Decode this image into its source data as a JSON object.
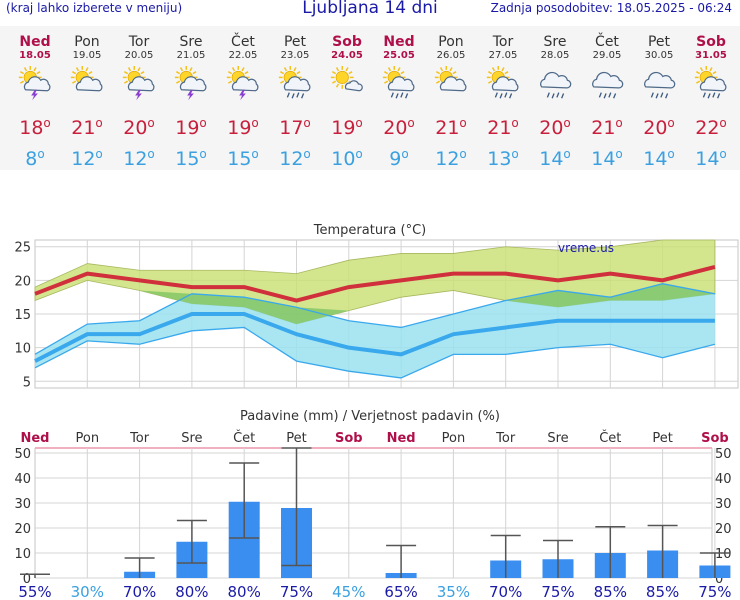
{
  "header": {
    "menu_hint": "(kraj lahko izberete v meniju)",
    "title": "Ljubljana 14 dni",
    "updated": "Zadnja posodobitev: 18.05.2025 - 06:24"
  },
  "days": [
    {
      "name": "Ned",
      "date": "18.05",
      "weekend": true,
      "icon": "sun-cloud-storm-icon",
      "tmax": "18",
      "tmin": "8"
    },
    {
      "name": "Pon",
      "date": "19.05",
      "weekend": false,
      "icon": "sun-cloud-icon",
      "tmax": "21",
      "tmin": "12"
    },
    {
      "name": "Tor",
      "date": "20.05",
      "weekend": false,
      "icon": "sun-cloud-storm-icon",
      "tmax": "20",
      "tmin": "12"
    },
    {
      "name": "Sre",
      "date": "21.05",
      "weekend": false,
      "icon": "sun-cloud-storm-icon",
      "tmax": "19",
      "tmin": "15"
    },
    {
      "name": "Čet",
      "date": "22.05",
      "weekend": false,
      "icon": "sun-cloud-storm-icon",
      "tmax": "19",
      "tmin": "15"
    },
    {
      "name": "Pet",
      "date": "23.05",
      "weekend": false,
      "icon": "sun-cloud-rain-icon",
      "tmax": "17",
      "tmin": "12"
    },
    {
      "name": "Sob",
      "date": "24.05",
      "weekend": true,
      "icon": "sun-small-cloud-icon",
      "tmax": "19",
      "tmin": "10"
    },
    {
      "name": "Ned",
      "date": "25.05",
      "weekend": true,
      "icon": "sun-cloud-rain-icon",
      "tmax": "20",
      "tmin": "9"
    },
    {
      "name": "Pon",
      "date": "26.05",
      "weekend": false,
      "icon": "sun-cloud-icon",
      "tmax": "21",
      "tmin": "12"
    },
    {
      "name": "Tor",
      "date": "27.05",
      "weekend": false,
      "icon": "sun-cloud-rain-icon",
      "tmax": "21",
      "tmin": "13"
    },
    {
      "name": "Sre",
      "date": "28.05",
      "weekend": false,
      "icon": "cloud-rain-icon",
      "tmax": "20",
      "tmin": "14"
    },
    {
      "name": "Čet",
      "date": "29.05",
      "weekend": false,
      "icon": "cloud-rain-icon",
      "tmax": "21",
      "tmin": "14"
    },
    {
      "name": "Pet",
      "date": "30.05",
      "weekend": false,
      "icon": "cloud-rain-icon",
      "tmax": "20",
      "tmin": "14"
    },
    {
      "name": "Sob",
      "date": "31.05",
      "weekend": true,
      "icon": "sun-cloud-rain-icon",
      "tmax": "22",
      "tmin": "14"
    }
  ],
  "degree_symbol": "o",
  "colors": {
    "max_line": "#d0303c",
    "max_band": "#c8e070",
    "min_line": "#3aa8ec",
    "min_band": "#9ae2f0",
    "overlap": "#88c868",
    "bar": "#3a8ef0",
    "whisker": "#555555",
    "weekend": "#b0104a",
    "prob_high": "#1a1aa6",
    "prob_low": "#3aa0e0"
  },
  "chart_data": [
    {
      "type": "area",
      "title": "Temperatura (°C)",
      "watermark": "vreme.us",
      "ylim": [
        4,
        26
      ],
      "yticks": [
        5,
        10,
        15,
        20,
        25
      ],
      "grid": true,
      "categories": [
        "18.05",
        "19.05",
        "20.05",
        "21.05",
        "22.05",
        "23.05",
        "24.05",
        "25.05",
        "26.05",
        "27.05",
        "28.05",
        "29.05",
        "30.05",
        "31.05"
      ],
      "series": [
        {
          "values": [
            18,
            21,
            20,
            19,
            19,
            17,
            19,
            20,
            21,
            21,
            20,
            21,
            20,
            22
          ]
        },
        {
          "values": [
            19,
            22.5,
            21.5,
            21.5,
            21.5,
            21,
            23,
            24,
            24,
            25,
            24.5,
            25,
            26,
            26
          ]
        },
        {
          "values": [
            17,
            20,
            18.5,
            16.5,
            16,
            13.5,
            15.5,
            17.5,
            18.5,
            17,
            16,
            17,
            17,
            18
          ]
        },
        {
          "values": [
            8,
            12,
            12,
            15,
            15,
            12,
            10,
            9,
            12,
            13,
            14,
            14,
            14,
            14
          ]
        },
        {
          "values": [
            9,
            13.5,
            14,
            18,
            17.5,
            16,
            14,
            13,
            15,
            17,
            18.5,
            17.5,
            19.5,
            18
          ]
        },
        {
          "values": [
            7,
            11,
            10.5,
            12.5,
            13,
            8,
            6.5,
            5.5,
            9,
            9,
            10,
            10.5,
            8.5,
            10.5
          ]
        }
      ]
    },
    {
      "type": "bar",
      "title": "Padavine (mm) / Verjetnost padavin (%)",
      "ylim": [
        0,
        52
      ],
      "yticks": [
        0,
        10,
        20,
        30,
        40,
        50
      ],
      "grid": true,
      "categories": [
        "Ned",
        "Pon",
        "Tor",
        "Sre",
        "Čet",
        "Pet",
        "Sob",
        "Ned",
        "Pon",
        "Tor",
        "Sre",
        "Čet",
        "Pet",
        "Sob"
      ],
      "series": [
        {
          "values": [
            0,
            0,
            2.5,
            14.5,
            30.5,
            28,
            0,
            2,
            0,
            7,
            7.5,
            10,
            11,
            5
          ]
        },
        {
          "values": [
            0,
            0,
            0,
            6,
            16,
            5,
            0,
            0,
            0,
            0,
            0,
            0,
            0,
            0
          ]
        },
        {
          "values": [
            1.5,
            0,
            8,
            23,
            46,
            52,
            0,
            13,
            0,
            17,
            15,
            20.5,
            21,
            10
          ]
        },
        {
          "values": [
            "55%",
            "30%",
            "70%",
            "80%",
            "80%",
            "75%",
            "45%",
            "65%",
            "35%",
            "70%",
            "75%",
            "85%",
            "85%",
            "75%"
          ]
        }
      ]
    }
  ]
}
